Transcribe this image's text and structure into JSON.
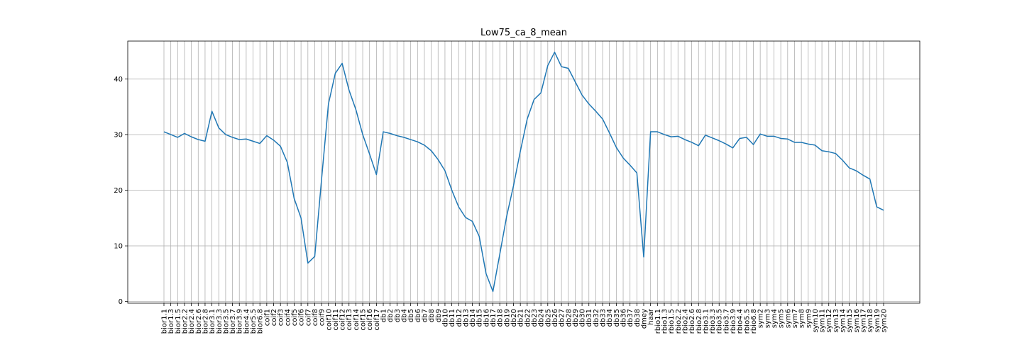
{
  "chart_data": {
    "type": "line",
    "title": "Low75_ca_8_mean",
    "xlabel": "",
    "ylabel": "",
    "ylim": [
      -0.3,
      46.8
    ],
    "yticks": [
      0,
      10,
      20,
      30,
      40
    ],
    "grid": true,
    "line_color": "#1f77b4",
    "categories": [
      "bior1.1",
      "bior1.3",
      "bior1.5",
      "bior2.2",
      "bior2.4",
      "bior2.6",
      "bior2.8",
      "bior3.1",
      "bior3.3",
      "bior3.5",
      "bior3.7",
      "bior3.9",
      "bior4.4",
      "bior5.5",
      "bior6.8",
      "coif1",
      "coif2",
      "coif3",
      "coif4",
      "coif5",
      "coif6",
      "coif7",
      "coif8",
      "coif9",
      "coif10",
      "coif11",
      "coif12",
      "coif13",
      "coif14",
      "coif15",
      "coif16",
      "coif17",
      "db1",
      "db2",
      "db3",
      "db4",
      "db5",
      "db6",
      "db7",
      "db8",
      "db9",
      "db10",
      "db11",
      "db12",
      "db13",
      "db14",
      "db15",
      "db16",
      "db17",
      "db18",
      "db19",
      "db20",
      "db21",
      "db22",
      "db23",
      "db24",
      "db25",
      "db26",
      "db27",
      "db28",
      "db29",
      "db30",
      "db31",
      "db32",
      "db33",
      "db34",
      "db35",
      "db36",
      "db37",
      "db38",
      "dmey",
      "haar",
      "rbio1.1",
      "rbio1.3",
      "rbio1.5",
      "rbio2.2",
      "rbio2.4",
      "rbio2.6",
      "rbio2.8",
      "rbio3.1",
      "rbio3.3",
      "rbio3.5",
      "rbio3.7",
      "rbio3.9",
      "rbio4.4",
      "rbio5.5",
      "rbio6.8",
      "sym2",
      "sym3",
      "sym4",
      "sym5",
      "sym6",
      "sym7",
      "sym8",
      "sym9",
      "sym10",
      "sym11",
      "sym12",
      "sym13",
      "sym14",
      "sym15",
      "sym16",
      "sym17",
      "sym18",
      "sym19",
      "sym20"
    ],
    "series": [
      {
        "values": [
          30.5,
          30.0,
          29.5,
          30.2,
          29.6,
          29.1,
          28.8,
          34.2,
          31.2,
          30.0,
          29.5,
          29.1,
          29.2,
          28.8,
          28.4,
          29.8,
          29.0,
          27.9,
          25.0,
          18.5,
          15.0,
          6.9,
          8.1,
          22.0,
          35.5,
          41.0,
          42.8,
          38.0,
          34.5,
          30.0,
          26.5,
          22.8,
          30.5,
          30.2,
          29.8,
          29.5,
          29.1,
          28.7,
          28.1,
          27.1,
          25.5,
          23.5,
          20.0,
          17.0,
          15.1,
          14.4,
          11.7,
          5.0,
          1.8,
          8.5,
          15.3,
          20.8,
          27.0,
          32.8,
          36.3,
          37.5,
          42.4,
          44.8,
          42.2,
          41.9,
          39.5,
          37.1,
          35.5,
          34.2,
          32.8,
          30.3,
          27.7,
          25.8,
          24.5,
          23.1,
          8.0,
          30.5,
          30.5,
          30.0,
          29.6,
          29.7,
          29.1,
          28.6,
          28.0,
          29.9,
          29.4,
          28.9,
          28.3,
          27.6,
          29.3,
          29.5,
          28.2,
          30.1,
          29.7,
          29.7,
          29.3,
          29.2,
          28.6,
          28.6,
          28.3,
          28.1,
          27.1,
          26.9,
          26.6,
          25.4,
          24.0,
          23.5,
          22.7,
          22.0,
          17.0,
          16.4
        ]
      }
    ]
  }
}
